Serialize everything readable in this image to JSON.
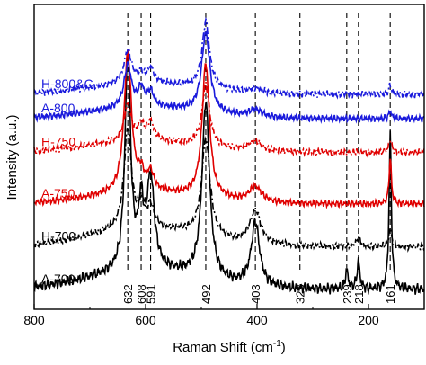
{
  "chart_data": {
    "type": "line",
    "title": "",
    "xlabel": "Raman Shift (cm",
    "xlabel_sup": "-1",
    "xlabel_close": ")",
    "ylabel": "Intensity (a.u.)",
    "xlim": [
      800,
      100
    ],
    "x_reversed": true,
    "ylim": [
      0,
      1
    ],
    "y_ticks_shown": false,
    "grid": false,
    "x_ticks": [
      800,
      600,
      400,
      200
    ],
    "x_tick_labels": [
      "800",
      "600",
      "400",
      "200"
    ],
    "peak_markers": [
      {
        "x": 632,
        "label": "632"
      },
      {
        "x": 608,
        "label": "608"
      },
      {
        "x": 591,
        "label": "591"
      },
      {
        "x": 492,
        "label": "492"
      },
      {
        "x": 403,
        "label": "403"
      },
      {
        "x": 323,
        "label": "323"
      },
      {
        "x": 239,
        "label": "239"
      },
      {
        "x": 218,
        "label": "218"
      },
      {
        "x": 161,
        "label": "161"
      }
    ],
    "series": [
      {
        "name": "A-700",
        "color": "#000000",
        "dash": "solid",
        "baseline": 0.065,
        "peaks": [
          [
            632,
            0.71,
            6
          ],
          [
            608,
            0.19,
            6
          ],
          [
            591,
            0.29,
            8
          ],
          [
            492,
            0.58,
            8
          ],
          [
            403,
            0.21,
            9
          ],
          [
            239,
            0.06,
            3
          ],
          [
            218,
            0.09,
            3
          ],
          [
            161,
            0.5,
            2.5
          ]
        ]
      },
      {
        "name": "H-700",
        "color": "#000000",
        "dash": "dashdot",
        "baseline": 0.205,
        "peaks": [
          [
            632,
            0.33,
            8
          ],
          [
            608,
            0.06,
            6
          ],
          [
            591,
            0.07,
            7
          ],
          [
            492,
            0.32,
            9
          ],
          [
            403,
            0.11,
            12
          ],
          [
            218,
            0.03,
            4
          ],
          [
            161,
            0.06,
            3
          ]
        ]
      },
      {
        "name": "A-750",
        "color": "#e00000",
        "dash": "solid",
        "baseline": 0.345,
        "peaks": [
          [
            632,
            0.46,
            8
          ],
          [
            608,
            0.05,
            6
          ],
          [
            591,
            0.06,
            7
          ],
          [
            492,
            0.44,
            8
          ],
          [
            403,
            0.05,
            14
          ],
          [
            161,
            0.15,
            2.5
          ]
        ]
      },
      {
        "name": "H-750",
        "color": "#e00000",
        "dash": "dashdot",
        "baseline": 0.515,
        "peaks": [
          [
            632,
            0.12,
            8
          ],
          [
            608,
            0.05,
            6
          ],
          [
            591,
            0.06,
            7
          ],
          [
            492,
            0.2,
            8
          ],
          [
            403,
            0.03,
            14
          ],
          [
            161,
            0.04,
            3
          ]
        ]
      },
      {
        "name": "A-800",
        "color": "#1a1adc",
        "dash": "solid",
        "baseline": 0.625,
        "peaks": [
          [
            632,
            0.14,
            8
          ],
          [
            608,
            0.06,
            6
          ],
          [
            591,
            0.05,
            7
          ],
          [
            492,
            0.26,
            9
          ],
          [
            403,
            0.025,
            14
          ],
          [
            161,
            0.025,
            3
          ]
        ]
      },
      {
        "name": "H-800&C",
        "color": "#1a1adc",
        "dash": "dashdot",
        "baseline": 0.705,
        "peaks": [
          [
            632,
            0.11,
            8
          ],
          [
            608,
            0.03,
            6
          ],
          [
            591,
            0.05,
            7
          ],
          [
            492,
            0.22,
            8
          ],
          [
            403,
            0.015,
            14
          ],
          [
            161,
            0.03,
            3
          ]
        ]
      }
    ]
  }
}
